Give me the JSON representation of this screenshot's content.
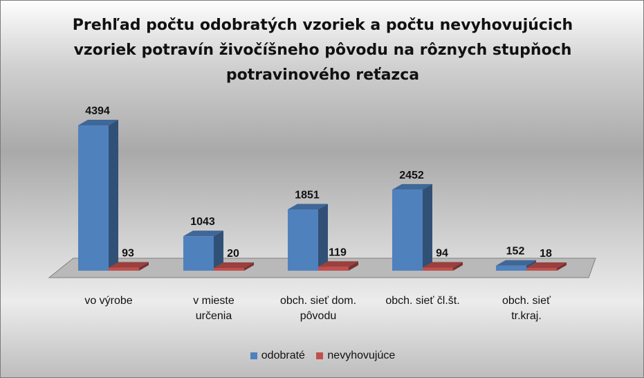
{
  "chart_data": {
    "type": "bar",
    "title": "Prehľad počtu odobratých vzoriek a počtu nevyhovujúcich vzoriek potravín živočíšneho pôvodu na rôznych stupňoch potravinového reťazca",
    "title_lines": [
      "Prehľad počtu odobratých vzoriek a počtu nevyhovujúcich",
      "vzoriek potravín živočíšneho pôvodu na rôznych stupňoch",
      "potravinového reťazca"
    ],
    "categories": [
      [
        "vo výrobe"
      ],
      [
        "v mieste",
        "určenia"
      ],
      [
        "obch. sieť dom.",
        "pôvodu"
      ],
      [
        "obch. sieť čl.št."
      ],
      [
        "obch. sieť",
        "tr.kraj."
      ]
    ],
    "series": [
      {
        "name": "odobraté",
        "values": [
          4394,
          1043,
          1851,
          2452,
          152
        ],
        "color": "#4f81bd"
      },
      {
        "name": "nevyhovujúce",
        "values": [
          93,
          20,
          119,
          94,
          18
        ],
        "color": "#c0504d"
      }
    ],
    "ylim": [
      0,
      4800
    ],
    "legend_position": "bottom",
    "xlabel": "",
    "ylabel": ""
  }
}
